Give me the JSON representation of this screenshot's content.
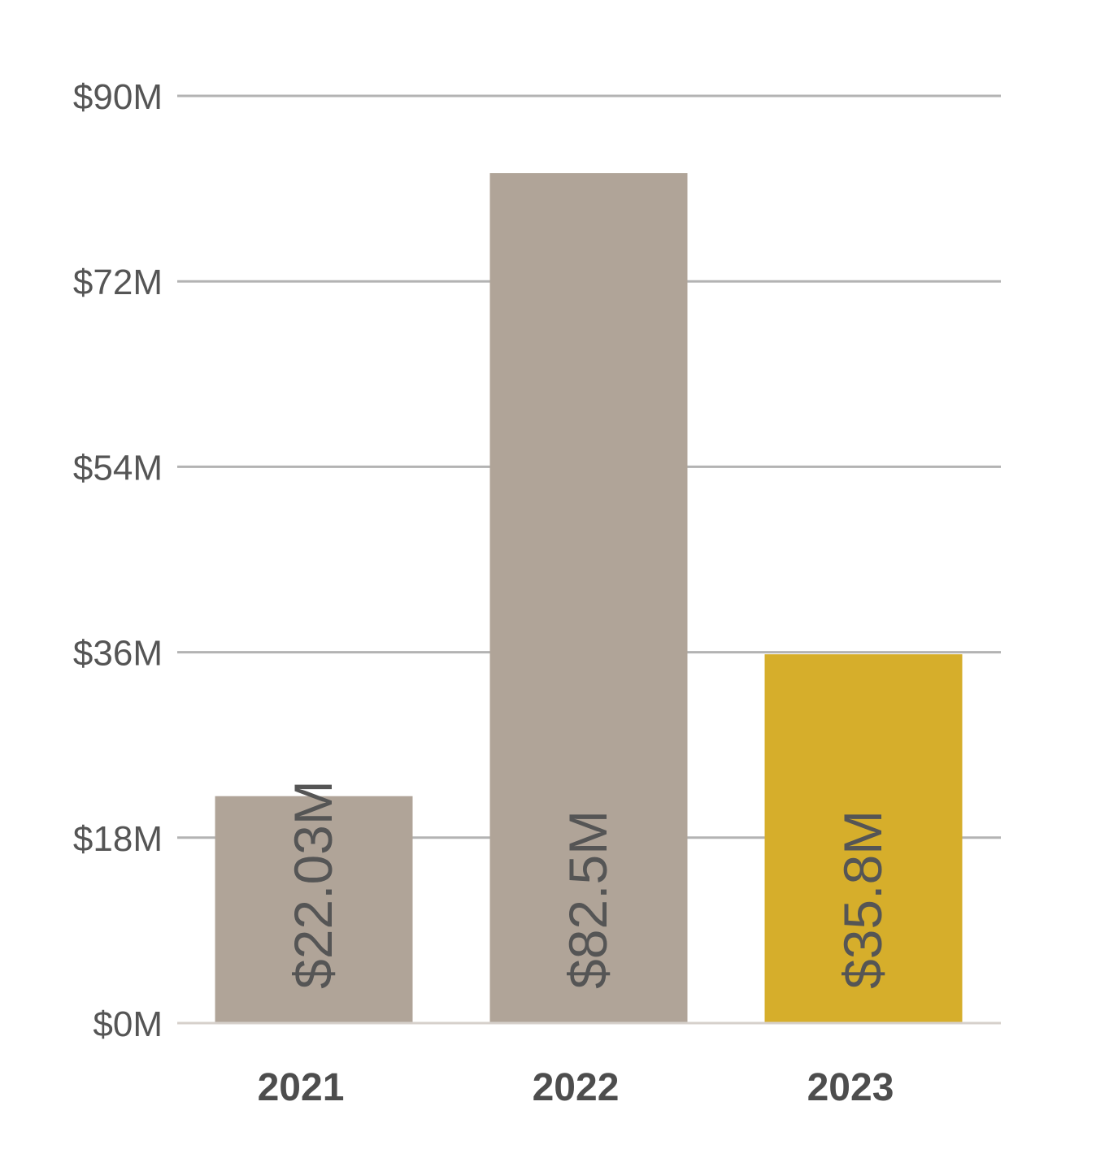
{
  "chart_data": {
    "type": "bar",
    "categories": [
      "2021",
      "2022",
      "2023"
    ],
    "values": [
      22.03,
      82.5,
      35.8
    ],
    "value_labels": [
      "$22.03M",
      "$82.5M",
      "$35.8M"
    ],
    "y_ticks": [
      0,
      18,
      36,
      54,
      72,
      90
    ],
    "y_tick_labels": [
      "$0M",
      "$18M",
      "$36M",
      "$54M",
      "$72M",
      "$90M"
    ],
    "ylim": [
      0,
      90
    ],
    "grid": true,
    "title": "",
    "xlabel": "",
    "ylabel": "",
    "colors": {
      "bar_default": "#b0a498",
      "bar_highlight": "#d6ae2b",
      "gridline": "#b3b3b3",
      "baseline": "#d6d0cb"
    },
    "highlight_index": 2
  }
}
